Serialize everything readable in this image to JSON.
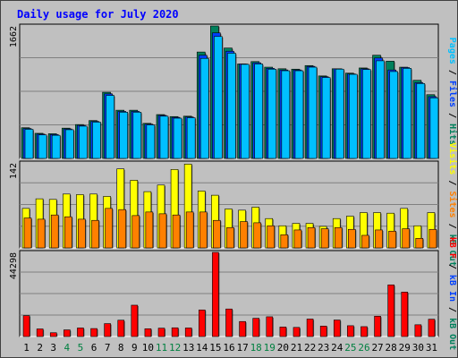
{
  "title": "Daily usage for July 2020",
  "colors": {
    "title": "#0000ff",
    "hits": "#00805c",
    "files": "#0040ff",
    "pages": "#00c0ff",
    "visits": "#ffff00",
    "sites": "#ff8000",
    "kbytes": "#ff0000",
    "plot_bg": "#c0c0c0",
    "weekend_label": "#008040",
    "weekday_label": "#000000"
  },
  "chart_data": [
    {
      "type": "bar",
      "panel": "top",
      "ymax_label": "1662",
      "ylim": [
        0,
        1662
      ],
      "categories": [
        "1",
        "2",
        "3",
        "4",
        "5",
        "6",
        "7",
        "8",
        "9",
        "10",
        "11",
        "12",
        "13",
        "14",
        "15",
        "16",
        "17",
        "18",
        "19",
        "20",
        "21",
        "22",
        "23",
        "24",
        "25",
        "26",
        "27",
        "28",
        "29",
        "30",
        "31"
      ],
      "weekend_days": [
        "4",
        "5",
        "11",
        "12",
        "18",
        "19",
        "25",
        "26"
      ],
      "series": [
        {
          "name": "Hits",
          "values": [
            385,
            315,
            310,
            380,
            425,
            475,
            830,
            605,
            605,
            440,
            550,
            525,
            530,
            1335,
            1662,
            1385,
            1185,
            1215,
            1145,
            1125,
            1120,
            1165,
            1035,
            1125,
            1070,
            1135,
            1295,
            1220,
            1145,
            980,
            800
          ]
        },
        {
          "name": "Files",
          "values": [
            375,
            305,
            300,
            370,
            415,
            465,
            810,
            590,
            590,
            430,
            540,
            515,
            520,
            1295,
            1575,
            1345,
            1185,
            1200,
            1130,
            1110,
            1110,
            1155,
            1025,
            1125,
            1060,
            1125,
            1260,
            1110,
            1140,
            950,
            775
          ]
        },
        {
          "name": "Pages",
          "values": [
            365,
            295,
            290,
            360,
            405,
            455,
            790,
            580,
            580,
            420,
            530,
            505,
            510,
            1255,
            1530,
            1320,
            1180,
            1185,
            1120,
            1100,
            1100,
            1145,
            1015,
            1120,
            1055,
            1115,
            1225,
            1090,
            1130,
            940,
            760
          ]
        }
      ],
      "legend_side": "right",
      "legend_labels": [
        "Pages",
        "/",
        "Files",
        "/",
        "Hits"
      ]
    },
    {
      "type": "bar",
      "panel": "middle",
      "ymax_label": "142",
      "ylim": [
        0,
        142
      ],
      "categories": [
        "1",
        "2",
        "3",
        "4",
        "5",
        "6",
        "7",
        "8",
        "9",
        "10",
        "11",
        "12",
        "13",
        "14",
        "15",
        "16",
        "17",
        "18",
        "19",
        "20",
        "21",
        "22",
        "23",
        "24",
        "25",
        "26",
        "27",
        "28",
        "29",
        "30",
        "31"
      ],
      "series": [
        {
          "name": "Visits",
          "values": [
            66,
            82,
            81,
            90,
            89,
            90,
            86,
            132,
            113,
            94,
            105,
            131,
            140,
            95,
            88,
            65,
            63,
            68,
            49,
            37,
            41,
            41,
            36,
            49,
            53,
            59,
            59,
            58,
            66,
            37,
            59
          ]
        },
        {
          "name": "Sites",
          "values": [
            50,
            48,
            55,
            52,
            48,
            46,
            66,
            64,
            54,
            60,
            57,
            55,
            60,
            60,
            46,
            34,
            44,
            42,
            37,
            22,
            30,
            34,
            32,
            34,
            31,
            21,
            30,
            28,
            32,
            16,
            31
          ]
        },
        {
          "name": "kB Out",
          "values": [
            0,
            0,
            0,
            0,
            0,
            0,
            0,
            0,
            0,
            0,
            0,
            0,
            0,
            0,
            0,
            0,
            0,
            0,
            0,
            0,
            0,
            0,
            0,
            0,
            0,
            0,
            0,
            0,
            0,
            0,
            0
          ]
        }
      ],
      "legend_side": "right",
      "legend_labels": [
        "Visits",
        "/",
        "Sites",
        "/",
        "kB Out"
      ]
    },
    {
      "type": "bar",
      "panel": "bottom",
      "ymax_label": "44298",
      "ylim": [
        0,
        44298
      ],
      "categories": [
        "1",
        "2",
        "3",
        "4",
        "5",
        "6",
        "7",
        "8",
        "9",
        "10",
        "11",
        "12",
        "13",
        "14",
        "15",
        "16",
        "17",
        "18",
        "19",
        "20",
        "21",
        "22",
        "23",
        "24",
        "25",
        "26",
        "27",
        "28",
        "29",
        "30",
        "31"
      ],
      "series": [
        {
          "name": "kB F",
          "values": [
            11000,
            4000,
            2000,
            3500,
            4500,
            4200,
            6800,
            8600,
            16500,
            4100,
            4400,
            4600,
            4500,
            14000,
            44298,
            14500,
            7900,
            9600,
            10400,
            5000,
            4800,
            9200,
            5500,
            8700,
            5700,
            5200,
            10700,
            27200,
            23400,
            6200,
            9100
          ]
        },
        {
          "name": "kB In",
          "values": [
            0,
            0,
            0,
            0,
            0,
            0,
            0,
            0,
            0,
            0,
            0,
            0,
            0,
            0,
            0,
            0,
            0,
            0,
            0,
            0,
            0,
            0,
            0,
            0,
            0,
            0,
            0,
            0,
            0,
            0,
            0
          ]
        }
      ],
      "legend_side": "right",
      "legend_labels": [
        "kB F",
        "/",
        "kB In",
        "/",
        "kB Out"
      ]
    }
  ]
}
